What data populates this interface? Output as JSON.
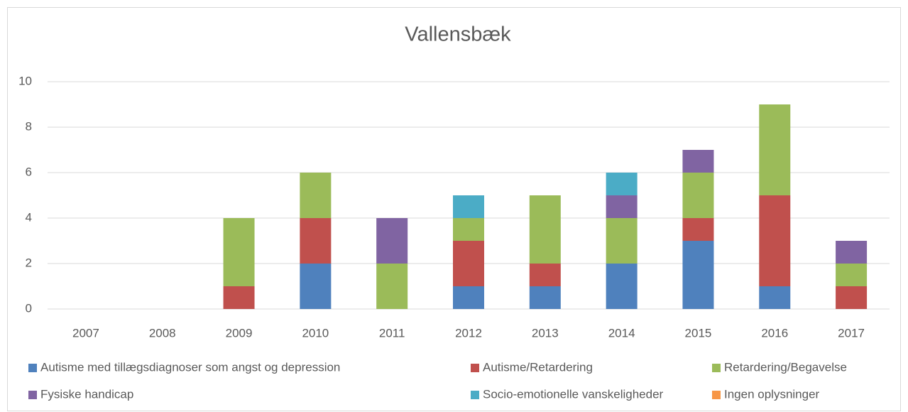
{
  "chart_data": {
    "type": "stacked_bar",
    "title": "Vallensbæk",
    "categories": [
      "2007",
      "2008",
      "2009",
      "2010",
      "2011",
      "2012",
      "2013",
      "2014",
      "2015",
      "2016",
      "2017"
    ],
    "series": [
      {
        "name": "Autisme med tillægsdiagnoser som angst og depression",
        "color": "#4f81bd",
        "values": [
          0,
          0,
          0,
          2,
          0,
          1,
          1,
          2,
          3,
          1,
          0
        ]
      },
      {
        "name": "Autisme/Retardering",
        "color": "#c0504d",
        "values": [
          0,
          0,
          1,
          2,
          0,
          2,
          1,
          0,
          1,
          4,
          1
        ]
      },
      {
        "name": "Retardering/Begavelse",
        "color": "#9bbb59",
        "values": [
          0,
          0,
          3,
          2,
          2,
          1,
          3,
          2,
          2,
          4,
          1
        ]
      },
      {
        "name": "Fysiske handicap",
        "color": "#8064a2",
        "values": [
          0,
          0,
          0,
          0,
          2,
          0,
          0,
          1,
          1,
          0,
          1
        ]
      },
      {
        "name": "Socio-emotionelle vanskeligheder",
        "color": "#4bacc6",
        "values": [
          0,
          0,
          0,
          0,
          0,
          1,
          0,
          1,
          0,
          0,
          0
        ]
      },
      {
        "name": "Ingen oplysninger",
        "color": "#f79646",
        "values": [
          0,
          0,
          0,
          0,
          0,
          0,
          0,
          0,
          0,
          0,
          0
        ]
      }
    ],
    "ylim": [
      0,
      10
    ],
    "yticks": [
      0,
      2,
      4,
      6,
      8,
      10
    ],
    "grid": true,
    "legend": "bottom"
  }
}
